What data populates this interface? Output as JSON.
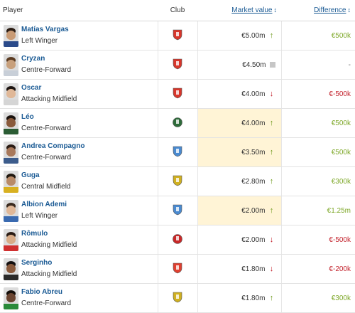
{
  "header": {
    "player": "Player",
    "club": "Club",
    "market_value": "Market value",
    "difference": "Difference"
  },
  "rows": [
    {
      "name": "Matías Vargas",
      "position": "Left Winger",
      "club_icon": "red-shield-crest-icon",
      "value": "€5.00m",
      "trend": "up",
      "diff": "€500k",
      "diff_sign": "pos",
      "skin": "#c99b75",
      "shirt": "#2a4a8a",
      "hair": "#2b1d14",
      "crest": "#d8362b",
      "highlight": false
    },
    {
      "name": "Cryzan",
      "position": "Centre-Forward",
      "club_icon": "red-white-crest-icon",
      "value": "€4.50m",
      "trend": "neutral",
      "diff": "-",
      "diff_sign": "zero",
      "skin": "#c8a07c",
      "shirt": "#c8cfd8",
      "hair": "#5a3b22",
      "crest": "#d8362b",
      "highlight": false
    },
    {
      "name": "Oscar",
      "position": "Attacking Midfield",
      "club_icon": "red-shield-crest-icon",
      "value": "€4.00m",
      "trend": "down",
      "diff": "€-500k",
      "diff_sign": "neg",
      "skin": "#e0b898",
      "shirt": "#d5d5d5",
      "hair": "#1d1512",
      "crest": "#d8362b",
      "highlight": false
    },
    {
      "name": "Léo",
      "position": "Centre-Forward",
      "club_icon": "green-round-crest-icon",
      "value": "€4.00m",
      "trend": "up",
      "diff": "€500k",
      "diff_sign": "pos",
      "skin": "#8a5a3c",
      "shirt": "#2b5c34",
      "hair": "#1a120e",
      "crest": "#2e6b3a",
      "highlight": true
    },
    {
      "name": "Andrea Compagno",
      "position": "Centre-Forward",
      "club_icon": "blue-shield-crest-icon",
      "value": "€3.50m",
      "trend": "up",
      "diff": "€500k",
      "diff_sign": "pos",
      "skin": "#a8785a",
      "shirt": "#3c5c8c",
      "hair": "#2a1c14",
      "crest": "#4a8ad0",
      "highlight": true
    },
    {
      "name": "Guga",
      "position": "Central Midfield",
      "club_icon": "yellow-green-crest-icon",
      "value": "€2.80m",
      "trend": "up",
      "diff": "€300k",
      "diff_sign": "pos",
      "skin": "#b88a68",
      "shirt": "#d8b020",
      "hair": "#201810",
      "crest": "#d0b020",
      "highlight": false
    },
    {
      "name": "Albion Ademi",
      "position": "Left Winger",
      "club_icon": "blue-shield-crest-icon",
      "value": "€2.00m",
      "trend": "up",
      "diff": "€1.25m",
      "diff_sign": "pos",
      "skin": "#e0b898",
      "shirt": "#3a6ab0",
      "hair": "#3a2a1e",
      "crest": "#4a8ad0",
      "highlight": true
    },
    {
      "name": "Rômulo",
      "position": "Attacking Midfield",
      "club_icon": "red-round-crest-icon",
      "value": "€2.00m",
      "trend": "down",
      "diff": "€-500k",
      "diff_sign": "neg",
      "skin": "#d8ac88",
      "shirt": "#d03030",
      "hair": "#2a1c14",
      "crest": "#c82828",
      "highlight": false
    },
    {
      "name": "Serginho",
      "position": "Attacking Midfield",
      "club_icon": "red-tall-crest-icon",
      "value": "€1.80m",
      "trend": "down",
      "diff": "€-200k",
      "diff_sign": "neg",
      "skin": "#8a5a3c",
      "shirt": "#2a2a2a",
      "hair": "#141010",
      "crest": "#e04030",
      "highlight": false
    },
    {
      "name": "Fabio Abreu",
      "position": "Centre-Forward",
      "club_icon": "yellow-green-crest-icon",
      "value": "€1.80m",
      "trend": "up",
      "diff": "€300k",
      "diff_sign": "pos",
      "skin": "#6a4430",
      "shirt": "#2a8a3a",
      "hair": "#140e0a",
      "crest": "#d0b020",
      "highlight": false
    }
  ],
  "icons": {
    "sort": "↕",
    "up": "↑",
    "down": "↓"
  }
}
